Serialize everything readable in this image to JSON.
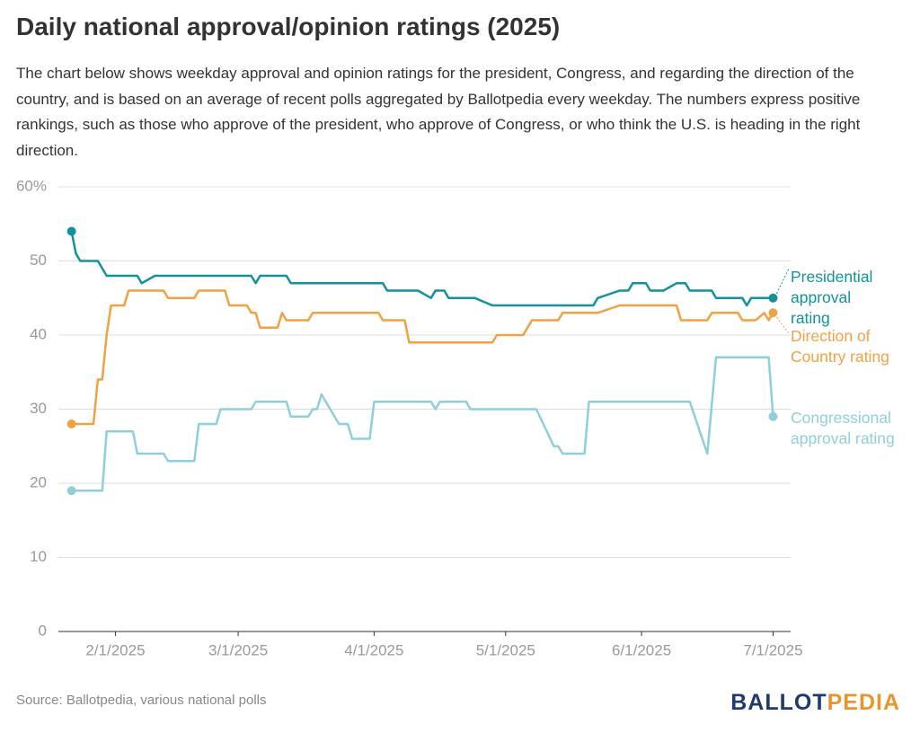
{
  "chart_data": {
    "type": "line",
    "title": "Daily national approval/opinion ratings (2025)",
    "subtitle": "The chart below shows weekday approval and opinion ratings for the president, Congress, and regarding the direction of the country, and is based on an average of recent polls aggregated by Ballotpedia every weekday. The numbers express positive rankings, such as those who approve of the president, who approve of Congress, or who think the U.S. is heading in the right direction.",
    "source": "Source: Ballotpedia, various national polls",
    "brand": [
      "BALLOT",
      "PEDIA"
    ],
    "xlim": [
      "2025-01-19",
      "2025-07-05"
    ],
    "xticks": [
      {
        "value": "2025-02-01",
        "label": "2/1/2025"
      },
      {
        "value": "2025-03-01",
        "label": "3/1/2025"
      },
      {
        "value": "2025-04-01",
        "label": "4/1/2025"
      },
      {
        "value": "2025-05-01",
        "label": "5/1/2025"
      },
      {
        "value": "2025-06-01",
        "label": "6/1/2025"
      },
      {
        "value": "2025-07-01",
        "label": "7/1/2025"
      }
    ],
    "ylim": [
      0,
      60
    ],
    "yticks": [
      0,
      10,
      20,
      30,
      40,
      50,
      {
        "value": 60,
        "label": "60%"
      }
    ],
    "grid": true,
    "series": [
      {
        "name": "Presidential approval rating",
        "color": "#12929b",
        "x": [
          "2025-01-22",
          "2025-01-23",
          "2025-01-24",
          "2025-01-28",
          "2025-01-30",
          "2025-02-06",
          "2025-02-07",
          "2025-02-10",
          "2025-03-04",
          "2025-03-05",
          "2025-03-06",
          "2025-03-12",
          "2025-03-13",
          "2025-04-03",
          "2025-04-04",
          "2025-04-11",
          "2025-04-14",
          "2025-04-15",
          "2025-04-17",
          "2025-04-18",
          "2025-04-24",
          "2025-04-28",
          "2025-05-21",
          "2025-05-22",
          "2025-05-27",
          "2025-05-29",
          "2025-05-30",
          "2025-06-02",
          "2025-06-03",
          "2025-06-06",
          "2025-06-09",
          "2025-06-11",
          "2025-06-12",
          "2025-06-17",
          "2025-06-18",
          "2025-06-24",
          "2025-06-25",
          "2025-06-26",
          "2025-07-01"
        ],
        "values": [
          54,
          51,
          50,
          50,
          48,
          48,
          47,
          48,
          48,
          47,
          48,
          48,
          47,
          47,
          46,
          46,
          45,
          46,
          46,
          45,
          45,
          44,
          44,
          45,
          46,
          46,
          47,
          47,
          46,
          46,
          47,
          47,
          46,
          46,
          45,
          45,
          44,
          45,
          45
        ]
      },
      {
        "name": "Direction of Country rating",
        "color": "#f0a143",
        "x": [
          "2025-01-22",
          "2025-01-27",
          "2025-01-28",
          "2025-01-29",
          "2025-01-30",
          "2025-01-31",
          "2025-02-03",
          "2025-02-04",
          "2025-02-12",
          "2025-02-13",
          "2025-02-19",
          "2025-02-20",
          "2025-02-26",
          "2025-02-27",
          "2025-03-03",
          "2025-03-04",
          "2025-03-05",
          "2025-03-06",
          "2025-03-10",
          "2025-03-11",
          "2025-03-12",
          "2025-03-17",
          "2025-03-18",
          "2025-04-02",
          "2025-04-03",
          "2025-04-08",
          "2025-04-09",
          "2025-04-28",
          "2025-04-29",
          "2025-05-05",
          "2025-05-07",
          "2025-05-13",
          "2025-05-14",
          "2025-05-22",
          "2025-05-27",
          "2025-06-09",
          "2025-06-10",
          "2025-06-16",
          "2025-06-17",
          "2025-06-23",
          "2025-06-24",
          "2025-06-27",
          "2025-06-29",
          "2025-06-30",
          "2025-07-01"
        ],
        "values": [
          28,
          28,
          34,
          34,
          40,
          44,
          44,
          46,
          46,
          45,
          45,
          46,
          46,
          44,
          44,
          43,
          43,
          41,
          41,
          43,
          42,
          42,
          43,
          43,
          42,
          42,
          39,
          39,
          40,
          40,
          42,
          42,
          43,
          43,
          44,
          44,
          42,
          42,
          43,
          43,
          42,
          42,
          43,
          42,
          43
        ]
      },
      {
        "name": "Congressional approval rating",
        "color": "#8fd0d8",
        "x": [
          "2025-01-22",
          "2025-01-29",
          "2025-01-30",
          "2025-02-05",
          "2025-02-06",
          "2025-02-12",
          "2025-02-13",
          "2025-02-19",
          "2025-02-20",
          "2025-02-24",
          "2025-02-25",
          "2025-03-04",
          "2025-03-05",
          "2025-03-12",
          "2025-03-13",
          "2025-03-17",
          "2025-03-18",
          "2025-03-19",
          "2025-03-20",
          "2025-03-24",
          "2025-03-26",
          "2025-03-27",
          "2025-03-31",
          "2025-04-01",
          "2025-04-14",
          "2025-04-15",
          "2025-04-16",
          "2025-04-22",
          "2025-04-23",
          "2025-05-08",
          "2025-05-12",
          "2025-05-13",
          "2025-05-14",
          "2025-05-19",
          "2025-05-20",
          "2025-06-12",
          "2025-06-16",
          "2025-06-18",
          "2025-06-30",
          "2025-07-01"
        ],
        "values": [
          19,
          19,
          27,
          27,
          24,
          24,
          23,
          23,
          28,
          28,
          30,
          30,
          31,
          31,
          29,
          29,
          30,
          30,
          32,
          28,
          28,
          26,
          26,
          31,
          31,
          30,
          31,
          31,
          30,
          30,
          25,
          25,
          24,
          24,
          31,
          31,
          24,
          37,
          37,
          29
        ]
      }
    ]
  }
}
